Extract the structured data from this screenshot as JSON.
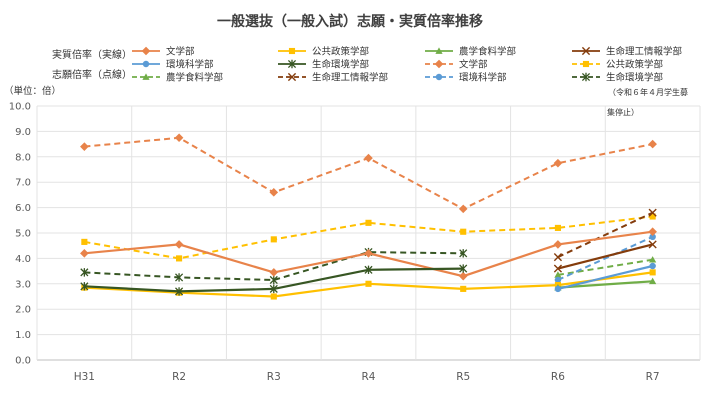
{
  "chart_data": {
    "type": "line",
    "title": "一般選抜（一般入試）志願・実質倍率推移",
    "unit_label": "（単位：倍）",
    "note_lines": [
      "（令和６年４月学生募",
      "集停止）"
    ],
    "legend_group_labels": [
      "実質倍率（実線）",
      "志願倍率（点線）"
    ],
    "categories": [
      "H31",
      "R2",
      "R3",
      "R4",
      "R5",
      "R6",
      "R7"
    ],
    "ylim": [
      0,
      10
    ],
    "yticks": [
      "0.0",
      "1.0",
      "2.0",
      "3.0",
      "4.0",
      "5.0",
      "6.0",
      "7.0",
      "8.0",
      "9.0",
      "10.0"
    ],
    "grid": true,
    "legend_position": "top",
    "series": [
      {
        "name": "文学部",
        "kind": "実質倍率",
        "dash": false,
        "color": "#E8834A",
        "marker": "diamond",
        "values": [
          4.2,
          4.55,
          3.45,
          4.2,
          3.3,
          4.55,
          5.05
        ]
      },
      {
        "name": "公共政策学部",
        "kind": "実質倍率",
        "dash": false,
        "color": "#FFC000",
        "marker": "square",
        "values": [
          2.85,
          2.65,
          2.5,
          3.0,
          2.8,
          2.95,
          3.45
        ]
      },
      {
        "name": "農学食料学部",
        "kind": "実質倍率",
        "dash": false,
        "color": "#70AD47",
        "marker": "triangle",
        "values": [
          null,
          null,
          null,
          null,
          null,
          2.85,
          3.1
        ]
      },
      {
        "name": "生命理工情報学部",
        "kind": "実質倍率",
        "dash": false,
        "color": "#843C0C",
        "marker": "x",
        "values": [
          null,
          null,
          null,
          null,
          null,
          3.6,
          4.55
        ]
      },
      {
        "name": "環境科学部",
        "kind": "実質倍率",
        "dash": false,
        "color": "#5B9BD5",
        "marker": "circle",
        "values": [
          null,
          null,
          null,
          null,
          null,
          2.8,
          3.7
        ]
      },
      {
        "name": "生命環境学部",
        "kind": "実質倍率",
        "dash": false,
        "color": "#375623",
        "marker": "star",
        "values": [
          2.9,
          2.7,
          2.8,
          3.55,
          3.6,
          null,
          null
        ]
      },
      {
        "name": "文学部",
        "kind": "志願倍率",
        "dash": true,
        "color": "#E8834A",
        "marker": "diamond",
        "values": [
          8.4,
          8.75,
          6.6,
          7.95,
          5.95,
          7.75,
          8.5
        ]
      },
      {
        "name": "公共政策学部",
        "kind": "志願倍率",
        "dash": true,
        "color": "#FFC000",
        "marker": "square",
        "values": [
          4.65,
          4.0,
          4.75,
          5.4,
          5.05,
          5.2,
          5.65
        ]
      },
      {
        "name": "農学食料学部",
        "kind": "志願倍率",
        "dash": true,
        "color": "#70AD47",
        "marker": "triangle",
        "values": [
          null,
          null,
          null,
          null,
          null,
          3.35,
          3.95
        ]
      },
      {
        "name": "生命理工情報学部",
        "kind": "志願倍率",
        "dash": true,
        "color": "#843C0C",
        "marker": "x",
        "values": [
          null,
          null,
          null,
          null,
          null,
          4.05,
          5.8
        ]
      },
      {
        "name": "環境科学部",
        "kind": "志願倍率",
        "dash": true,
        "color": "#5B9BD5",
        "marker": "circle",
        "values": [
          null,
          null,
          null,
          null,
          null,
          3.15,
          4.85
        ]
      },
      {
        "name": "生命環境学部",
        "kind": "志願倍率",
        "dash": true,
        "color": "#375623",
        "marker": "star",
        "values": [
          3.45,
          3.25,
          3.15,
          4.25,
          4.2,
          null,
          null
        ]
      }
    ]
  }
}
